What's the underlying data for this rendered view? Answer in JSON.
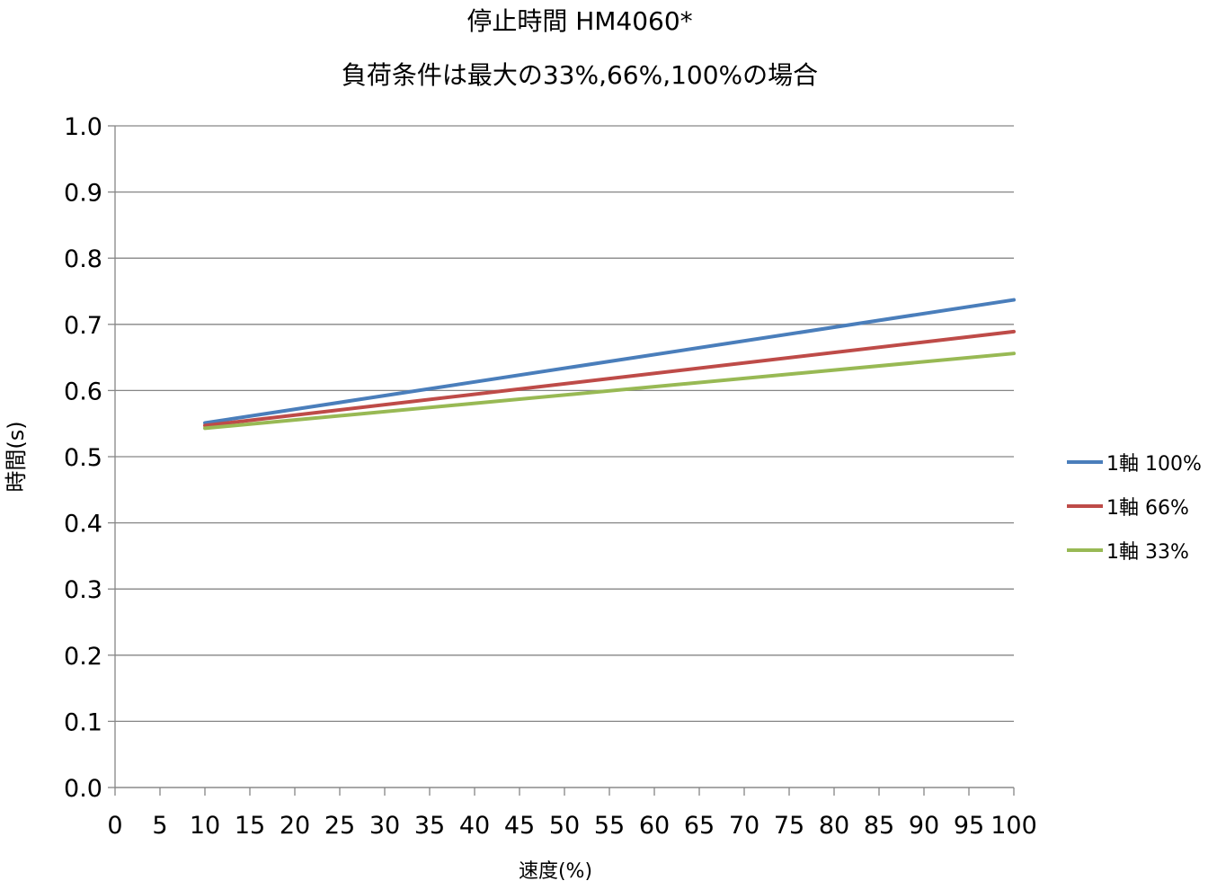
{
  "chart_data": {
    "type": "line",
    "title": "停止時間 HM4060*",
    "subtitle": "負荷条件は最大の33%,66%,100%の場合",
    "xlabel": "速度(%)",
    "ylabel": "時間(s)",
    "xlim": [
      0,
      100
    ],
    "ylim": [
      0,
      1.0
    ],
    "x_ticks": [
      "0",
      "5",
      "10",
      "15",
      "20",
      "25",
      "30",
      "35",
      "40",
      "45",
      "50",
      "55",
      "60",
      "65",
      "70",
      "75",
      "80",
      "85",
      "90",
      "95",
      "100"
    ],
    "y_ticks": [
      "0.0",
      "0.1",
      "0.2",
      "0.3",
      "0.4",
      "0.5",
      "0.6",
      "0.7",
      "0.8",
      "0.9",
      "1.0"
    ],
    "grid": "horizontal",
    "legend_position": "right",
    "x": [
      10,
      100
    ],
    "series": [
      {
        "name": "1軸 100%",
        "color": "#4a7ebb",
        "values": [
          0.551,
          0.737
        ]
      },
      {
        "name": "1軸 66%",
        "color": "#be4b48",
        "values": [
          0.547,
          0.689
        ]
      },
      {
        "name": "1軸 33%",
        "color": "#98b954",
        "values": [
          0.543,
          0.656
        ]
      }
    ]
  }
}
